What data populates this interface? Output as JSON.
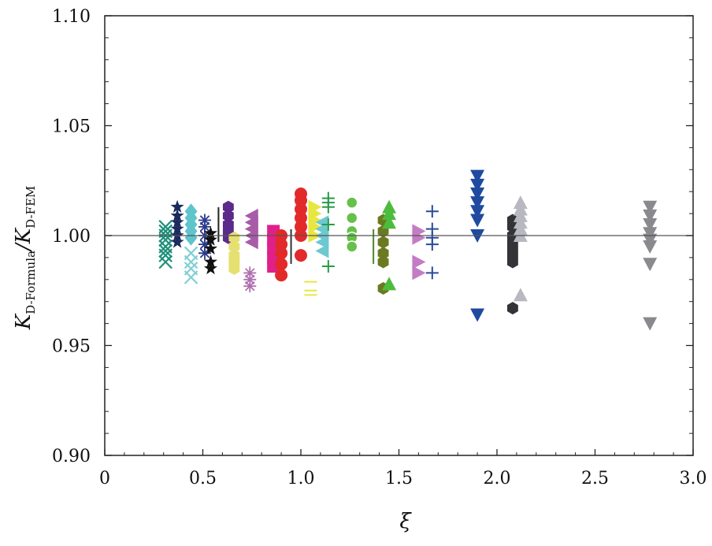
{
  "chart_data": {
    "type": "scatter",
    "title": "",
    "xlabel": "ξ",
    "ylabel": {
      "parts": [
        "K",
        "D-Formula",
        "/",
        "K",
        "D-FEM"
      ]
    },
    "xlim": [
      0,
      3.0
    ],
    "ylim": [
      0.9,
      1.1
    ],
    "x_ticks": [
      0,
      0.5,
      1.0,
      1.5,
      2.0,
      2.5,
      3.0
    ],
    "x_tick_labels": [
      "0",
      "0.5",
      "1.0",
      "1.5",
      "2.0",
      "2.5",
      "3.0"
    ],
    "y_ticks": [
      0.9,
      0.95,
      1.0,
      1.05,
      1.1
    ],
    "y_tick_labels": [
      "0.90",
      "0.95",
      "1.00",
      "1.05",
      "1.10"
    ],
    "reference_line": 1.0,
    "grid": false,
    "legend": "none",
    "series": [
      {
        "color": "#1f8f7a",
        "marker": "x",
        "x": [
          0.31,
          0.31,
          0.31,
          0.31,
          0.31,
          0.31,
          0.31,
          0.31
        ],
        "y": [
          1.004,
          1.002,
          1.0,
          0.998,
          0.995,
          0.993,
          0.991,
          0.988
        ]
      },
      {
        "color": "#1a2a5e",
        "marker": "star",
        "x": [
          0.37,
          0.37,
          0.37,
          0.37,
          0.37,
          0.37
        ],
        "y": [
          1.013,
          1.009,
          1.006,
          1.003,
          1.0,
          0.997
        ]
      },
      {
        "color": "#5fc4cc",
        "marker": "diamond",
        "x": [
          0.44,
          0.44,
          0.44,
          0.44,
          0.44
        ],
        "y": [
          1.011,
          1.008,
          1.005,
          1.002,
          0.999
        ]
      },
      {
        "color": "#7fd0d6",
        "marker": "x",
        "x": [
          0.44,
          0.44,
          0.44,
          0.44
        ],
        "y": [
          0.992,
          0.988,
          0.985,
          0.981
        ]
      },
      {
        "color": "#2a3a8c",
        "marker": "asterisk",
        "x": [
          0.51,
          0.51,
          0.51,
          0.51,
          0.51
        ],
        "y": [
          1.007,
          1.004,
          1.0,
          0.996,
          0.992
        ]
      },
      {
        "color": "#111111",
        "marker": "star",
        "x": [
          0.54,
          0.54,
          0.54,
          0.54,
          0.54
        ],
        "y": [
          1.001,
          0.998,
          0.994,
          0.988,
          0.985
        ]
      },
      {
        "color": "#222222",
        "marker": "vline",
        "x": [
          0.58
        ],
        "y": [
          1.005
        ]
      },
      {
        "color": "#5b2a8a",
        "marker": "hexagon",
        "x": [
          0.63,
          0.63,
          0.63,
          0.63,
          0.63
        ],
        "y": [
          1.013,
          1.009,
          1.005,
          1.002,
          0.999
        ]
      },
      {
        "color": "#e6e070",
        "marker": "hexagon",
        "x": [
          0.66,
          0.66,
          0.66,
          0.66,
          0.66
        ],
        "y": [
          0.999,
          0.995,
          0.991,
          0.988,
          0.985
        ]
      },
      {
        "color": "#a85ca8",
        "marker": "triangle-left",
        "x": [
          0.75,
          0.75,
          0.75,
          0.75,
          0.75
        ],
        "y": [
          1.009,
          1.006,
          1.003,
          1.0,
          0.997
        ]
      },
      {
        "color": "#b070b0",
        "marker": "asterisk",
        "x": [
          0.74,
          0.74,
          0.74
        ],
        "y": [
          0.983,
          0.98,
          0.977
        ]
      },
      {
        "color": "#e0208a",
        "marker": "square",
        "x": [
          0.86,
          0.86,
          0.86,
          0.86,
          0.86
        ],
        "y": [
          1.002,
          0.998,
          0.994,
          0.99,
          0.986
        ]
      },
      {
        "color": "#e22a2a",
        "marker": "circle",
        "x": [
          0.9,
          0.9,
          0.9,
          0.9,
          0.9
        ],
        "y": [
          1.0,
          0.996,
          0.992,
          0.987,
          0.982
        ]
      },
      {
        "color": "#333333",
        "marker": "vline",
        "x": [
          0.95
        ],
        "y": [
          0.995
        ]
      },
      {
        "color": "#e22a2a",
        "marker": "circle",
        "x": [
          1.0,
          1.0,
          1.0,
          1.0,
          1.0,
          1.0,
          1.0
        ],
        "y": [
          1.019,
          1.016,
          1.012,
          1.008,
          1.004,
          1.0,
          0.991
        ]
      },
      {
        "color": "#e8e640",
        "marker": "triangle-right",
        "x": [
          1.07,
          1.07,
          1.07,
          1.07,
          1.07
        ],
        "y": [
          1.013,
          1.01,
          1.007,
          1.004,
          1.0
        ]
      },
      {
        "color": "#e8e640",
        "marker": "hline",
        "x": [
          1.05,
          1.05,
          1.05
        ],
        "y": [
          0.979,
          0.975,
          0.973
        ]
      },
      {
        "color": "#6dc8d0",
        "marker": "triangle-left",
        "x": [
          1.11,
          1.11,
          1.11,
          1.11,
          1.11
        ],
        "y": [
          1.006,
          1.003,
          1.0,
          0.997,
          0.993
        ]
      },
      {
        "color": "#2a9a4a",
        "marker": "plus",
        "x": [
          1.14,
          1.14,
          1.14,
          1.14,
          1.14
        ],
        "y": [
          1.017,
          1.015,
          1.013,
          1.005,
          0.986
        ]
      },
      {
        "color": "#66c04a",
        "marker": "circle-open",
        "x": [
          1.26,
          1.26,
          1.26,
          1.26,
          1.26
        ],
        "y": [
          1.015,
          1.008,
          1.002,
          0.999,
          0.995
        ]
      },
      {
        "color": "#4a8a2a",
        "marker": "vline",
        "x": [
          1.37
        ],
        "y": [
          0.995
        ]
      },
      {
        "color": "#6b7a20",
        "marker": "hexagon",
        "x": [
          1.42,
          1.42,
          1.42,
          1.42,
          1.42,
          1.42
        ],
        "y": [
          1.007,
          1.002,
          0.997,
          0.992,
          0.988,
          0.976
        ]
      },
      {
        "color": "#4cbc3c",
        "marker": "triangle-up",
        "x": [
          1.45,
          1.45,
          1.45,
          1.45
        ],
        "y": [
          1.013,
          1.01,
          1.006,
          0.978
        ]
      },
      {
        "color": "#c47cc4",
        "marker": "triangle-right",
        "x": [
          1.6,
          1.6,
          1.6,
          1.6
        ],
        "y": [
          1.002,
          0.999,
          0.988,
          0.983
        ]
      },
      {
        "color": "#2a4a9a",
        "marker": "plus",
        "x": [
          1.67,
          1.67,
          1.67,
          1.67,
          1.67
        ],
        "y": [
          1.011,
          1.003,
          0.999,
          0.996,
          0.983
        ]
      },
      {
        "color": "#1f4aa0",
        "marker": "triangle-down",
        "x": [
          1.9,
          1.9,
          1.9,
          1.9,
          1.9,
          1.9,
          1.9,
          1.9
        ],
        "y": [
          1.027,
          1.023,
          1.019,
          1.015,
          1.011,
          1.007,
          1.0,
          0.964
        ]
      },
      {
        "color": "#333338",
        "marker": "hexagon",
        "x": [
          2.08,
          2.08,
          2.08,
          2.08,
          2.08,
          2.08,
          2.08,
          2.08
        ],
        "y": [
          1.007,
          1.004,
          1.0,
          0.997,
          0.994,
          0.991,
          0.988,
          0.967
        ]
      },
      {
        "color": "#b8b8c0",
        "marker": "triangle-up",
        "x": [
          2.12,
          2.12,
          2.12,
          2.12,
          2.12,
          2.12,
          2.12
        ],
        "y": [
          1.015,
          1.012,
          1.009,
          1.006,
          1.003,
          1.0,
          0.973
        ]
      },
      {
        "color": "#8a8a8e",
        "marker": "triangle-down",
        "x": [
          2.78,
          2.78,
          2.78,
          2.78,
          2.78,
          2.78,
          2.78,
          2.78
        ],
        "y": [
          1.013,
          1.009,
          1.005,
          1.001,
          0.998,
          0.995,
          0.987,
          0.96
        ]
      }
    ]
  }
}
